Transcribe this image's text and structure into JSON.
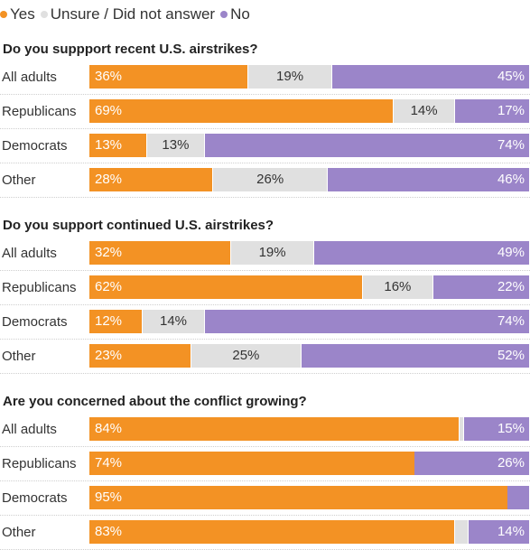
{
  "legend": {
    "yes": "Yes",
    "unsure": "Unsure / Did not answer",
    "no": "No"
  },
  "colors": {
    "yes": "#f39224",
    "unsure": "#e0e0e0",
    "no": "#9b85c9"
  },
  "chart_data": [
    {
      "type": "bar",
      "stacked": true,
      "orientation": "horizontal",
      "title": "Do you suppport recent U.S. airstrikes?",
      "categories": [
        "All adults",
        "Republicans",
        "Democrats",
        "Other"
      ],
      "series": [
        {
          "name": "Yes",
          "values": [
            36,
            69,
            13,
            28
          ],
          "labels": [
            "36%",
            "69%",
            "13%",
            "28%"
          ]
        },
        {
          "name": "Unsure / Did not answer",
          "values": [
            19,
            14,
            13,
            26
          ],
          "labels": [
            "19%",
            "14%",
            "13%",
            "26%"
          ]
        },
        {
          "name": "No",
          "values": [
            45,
            17,
            74,
            46
          ],
          "labels": [
            "45%",
            "17%",
            "74%",
            "46%"
          ]
        }
      ]
    },
    {
      "type": "bar",
      "stacked": true,
      "orientation": "horizontal",
      "title": "Do you support continued U.S. airstrikes?",
      "categories": [
        "All adults",
        "Republicans",
        "Democrats",
        "Other"
      ],
      "series": [
        {
          "name": "Yes",
          "values": [
            32,
            62,
            12,
            23
          ],
          "labels": [
            "32%",
            "62%",
            "12%",
            "23%"
          ]
        },
        {
          "name": "Unsure / Did not answer",
          "values": [
            19,
            16,
            14,
            25
          ],
          "labels": [
            "19%",
            "16%",
            "14%",
            "25%"
          ]
        },
        {
          "name": "No",
          "values": [
            49,
            22,
            74,
            52
          ],
          "labels": [
            "49%",
            "22%",
            "74%",
            "52%"
          ]
        }
      ]
    },
    {
      "type": "bar",
      "stacked": true,
      "orientation": "horizontal",
      "title": "Are you concerned about the conflict growing?",
      "categories": [
        "All adults",
        "Republicans",
        "Democrats",
        "Other"
      ],
      "series": [
        {
          "name": "Yes",
          "values": [
            84,
            74,
            95,
            83
          ],
          "labels": [
            "84%",
            "74%",
            "95%",
            "83%"
          ]
        },
        {
          "name": "Unsure / Did not answer",
          "values": [
            1,
            0,
            0,
            3
          ],
          "labels": [
            "",
            "",
            "",
            ""
          ]
        },
        {
          "name": "No",
          "values": [
            15,
            26,
            5,
            14
          ],
          "labels": [
            "15%",
            "26%",
            "",
            "14%"
          ]
        }
      ]
    }
  ]
}
